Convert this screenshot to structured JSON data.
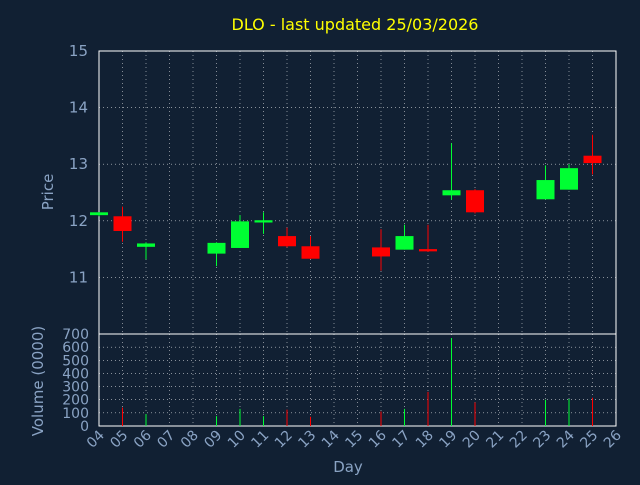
{
  "title": "DLO - last updated 25/03/2026",
  "colors": {
    "background": "#112033",
    "plot_border": "#ffffff",
    "grid": "#ffffff",
    "text": "#8aa3c4",
    "title": "#ffff00",
    "up": "#00ff33",
    "down": "#ff0000"
  },
  "chart_data": [
    {
      "type": "candlestick",
      "ylabel": "Price",
      "ylim": [
        10,
        15
      ],
      "yticks": [
        11,
        12,
        13,
        14,
        15
      ],
      "x_days": [
        "04",
        "05",
        "06",
        "07",
        "08",
        "09",
        "10",
        "11",
        "12",
        "13",
        "14",
        "15",
        "16",
        "17",
        "18",
        "19",
        "20",
        "21",
        "22",
        "23",
        "24",
        "25",
        "26"
      ],
      "xlim": [
        4,
        26
      ],
      "grid": true,
      "candles": [
        {
          "day": 4,
          "open": 12.1,
          "high": 12.15,
          "low": 12.08,
          "close": 12.15
        },
        {
          "day": 5,
          "open": 12.08,
          "high": 12.25,
          "low": 11.63,
          "close": 11.82
        },
        {
          "day": 6,
          "open": 11.54,
          "high": 11.62,
          "low": 11.32,
          "close": 11.6
        },
        {
          "day": 9,
          "open": 11.42,
          "high": 11.62,
          "low": 11.2,
          "close": 11.61
        },
        {
          "day": 10,
          "open": 11.52,
          "high": 12.1,
          "low": 11.52,
          "close": 11.99
        },
        {
          "day": 11,
          "open": 11.97,
          "high": 12.15,
          "low": 11.77,
          "close": 12.01
        },
        {
          "day": 12,
          "open": 11.73,
          "high": 11.88,
          "low": 11.53,
          "close": 11.55
        },
        {
          "day": 13,
          "open": 11.55,
          "high": 11.73,
          "low": 11.33,
          "close": 11.33
        },
        {
          "day": 16,
          "open": 11.53,
          "high": 11.85,
          "low": 11.12,
          "close": 11.37
        },
        {
          "day": 17,
          "open": 11.49,
          "high": 11.93,
          "low": 11.49,
          "close": 11.73
        },
        {
          "day": 18,
          "open": 11.5,
          "high": 11.93,
          "low": 11.45,
          "close": 11.46
        },
        {
          "day": 19,
          "open": 12.45,
          "high": 13.37,
          "low": 12.37,
          "close": 12.54
        },
        {
          "day": 20,
          "open": 12.54,
          "high": 12.56,
          "low": 12.13,
          "close": 12.15
        },
        {
          "day": 23,
          "open": 12.38,
          "high": 12.98,
          "low": 12.38,
          "close": 12.72
        },
        {
          "day": 24,
          "open": 12.55,
          "high": 13.0,
          "low": 12.55,
          "close": 12.93
        },
        {
          "day": 25,
          "open": 13.15,
          "high": 13.52,
          "low": 12.82,
          "close": 13.02
        }
      ]
    },
    {
      "type": "bar",
      "ylabel": "Volume (0000)",
      "xlabel": "Day",
      "ylim": [
        0,
        700
      ],
      "yticks": [
        0,
        100,
        200,
        300,
        400,
        500,
        600,
        700
      ],
      "x_days": [
        "04",
        "05",
        "06",
        "07",
        "08",
        "09",
        "10",
        "11",
        "12",
        "13",
        "14",
        "15",
        "16",
        "17",
        "18",
        "19",
        "20",
        "21",
        "22",
        "23",
        "24",
        "25",
        "26"
      ],
      "xlim": [
        4,
        26
      ],
      "grid": true,
      "bars": [
        {
          "day": 5,
          "value": 140,
          "color": "down"
        },
        {
          "day": 6,
          "value": 90,
          "color": "up"
        },
        {
          "day": 9,
          "value": 75,
          "color": "up"
        },
        {
          "day": 10,
          "value": 130,
          "color": "up"
        },
        {
          "day": 11,
          "value": 75,
          "color": "up"
        },
        {
          "day": 12,
          "value": 125,
          "color": "down"
        },
        {
          "day": 13,
          "value": 70,
          "color": "down"
        },
        {
          "day": 16,
          "value": 110,
          "color": "down"
        },
        {
          "day": 17,
          "value": 130,
          "color": "up"
        },
        {
          "day": 18,
          "value": 260,
          "color": "down"
        },
        {
          "day": 19,
          "value": 670,
          "color": "up"
        },
        {
          "day": 20,
          "value": 180,
          "color": "down"
        },
        {
          "day": 23,
          "value": 200,
          "color": "up"
        },
        {
          "day": 24,
          "value": 205,
          "color": "up"
        },
        {
          "day": 25,
          "value": 215,
          "color": "down"
        }
      ]
    }
  ]
}
